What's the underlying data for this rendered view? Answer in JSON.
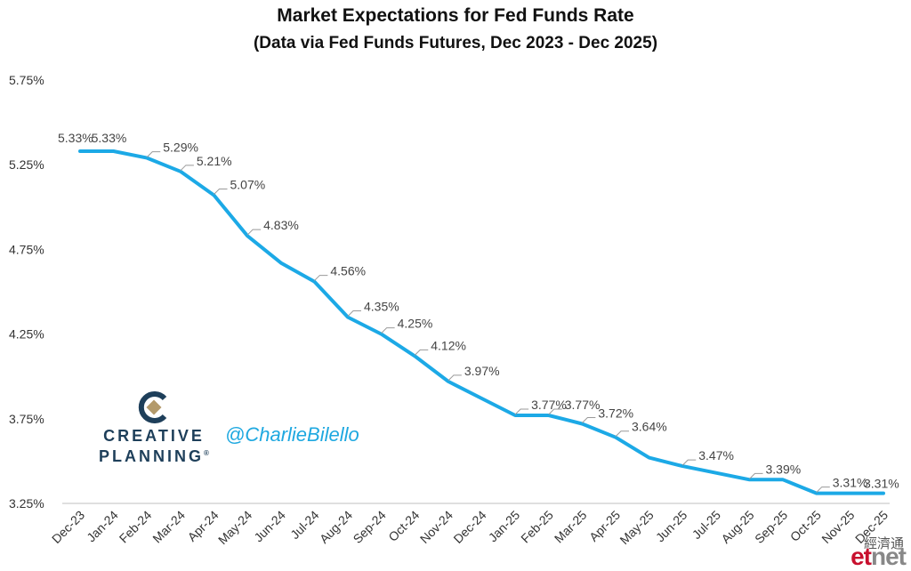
{
  "chart_data": {
    "type": "line",
    "title": "Market Expectations for Fed Funds Rate",
    "subtitle": "(Data via Fed Funds Futures, Dec 2023 - Dec 2025)",
    "categories": [
      "Dec-23",
      "Jan-24",
      "Feb-24",
      "Mar-24",
      "Apr-24",
      "May-24",
      "Jun-24",
      "Jul-24",
      "Aug-24",
      "Sep-24",
      "Oct-24",
      "Nov-24",
      "Dec-24",
      "Jan-25",
      "Feb-25",
      "Mar-25",
      "Apr-25",
      "May-25",
      "Jun-25",
      "Jul-25",
      "Aug-25",
      "Sep-25",
      "Oct-25",
      "Nov-25",
      "Dec-25"
    ],
    "series": [
      {
        "values": [
          5.33,
          5.33,
          5.29,
          5.21,
          5.07,
          4.83,
          4.67,
          4.56,
          4.35,
          4.25,
          4.12,
          3.97,
          3.87,
          3.77,
          3.77,
          3.72,
          3.64,
          3.52,
          3.47,
          3.43,
          3.39,
          3.39,
          3.31,
          3.31,
          3.31
        ],
        "labels": [
          "5.33%",
          "5.33%",
          "5.29%",
          "5.21%",
          "5.07%",
          "4.83%",
          "",
          "4.56%",
          "4.35%",
          "4.25%",
          "4.12%",
          "3.97%",
          "",
          "3.77%",
          "3.77%",
          "3.72%",
          "3.64%",
          "",
          "3.47%",
          "",
          "3.39%",
          "",
          "3.31%",
          "",
          "3.31%"
        ],
        "color": "#1ca9e6"
      }
    ],
    "y_ticks": [
      "5.75%",
      "5.25%",
      "4.75%",
      "4.25%",
      "3.75%",
      "3.25%"
    ],
    "ylim": [
      3.25,
      5.75
    ],
    "grid": false,
    "legend": "none"
  },
  "branding": {
    "logo_text_1": "CREATIVE",
    "logo_text_2": "PLANNING",
    "logo_mark": "®",
    "handle": "@CharlieBilello",
    "watermark_cn": "經濟通",
    "watermark_e": "et",
    "watermark_t": "net"
  }
}
